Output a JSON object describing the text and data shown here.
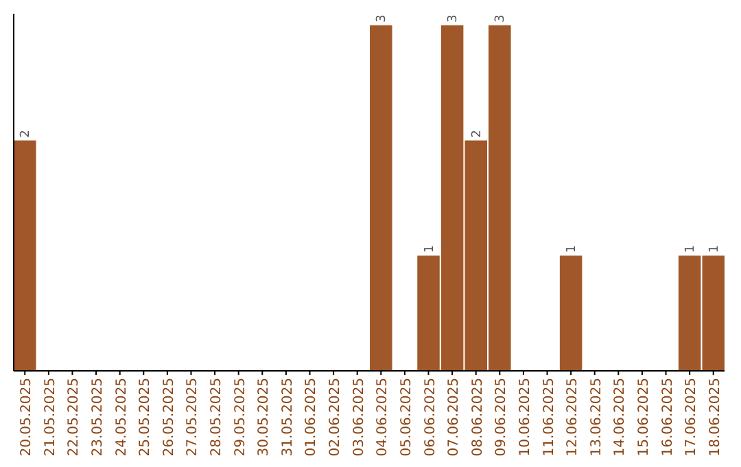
{
  "chart_data": {
    "type": "bar",
    "categories": [
      "20.05.2025",
      "21.05.2025",
      "22.05.2025",
      "23.05.2025",
      "24.05.2025",
      "25.05.2025",
      "26.05.2025",
      "27.05.2025",
      "28.05.2025",
      "29.05.2025",
      "30.05.2025",
      "31.05.2025",
      "01.06.2025",
      "02.06.2025",
      "03.06.2025",
      "04.06.2025",
      "05.06.2025",
      "06.06.2025",
      "07.06.2025",
      "08.06.2025",
      "09.06.2025",
      "10.06.2025",
      "11.06.2025",
      "12.06.2025",
      "13.06.2025",
      "14.06.2025",
      "15.06.2025",
      "16.06.2025",
      "17.06.2025",
      "18.06.2025"
    ],
    "values": [
      2,
      0,
      0,
      0,
      0,
      0,
      0,
      0,
      0,
      0,
      0,
      0,
      0,
      0,
      0,
      3,
      0,
      1,
      3,
      2,
      3,
      0,
      0,
      1,
      0,
      0,
      0,
      0,
      1,
      1
    ],
    "value_labels": [
      "2",
      null,
      null,
      null,
      null,
      null,
      null,
      null,
      null,
      null,
      null,
      null,
      null,
      null,
      null,
      "3",
      null,
      "1",
      "3",
      "2",
      "3",
      null,
      null,
      "1",
      null,
      null,
      null,
      null,
      "1",
      "1"
    ],
    "color": "#a0582a",
    "ylim": [
      0,
      3.1
    ]
  }
}
